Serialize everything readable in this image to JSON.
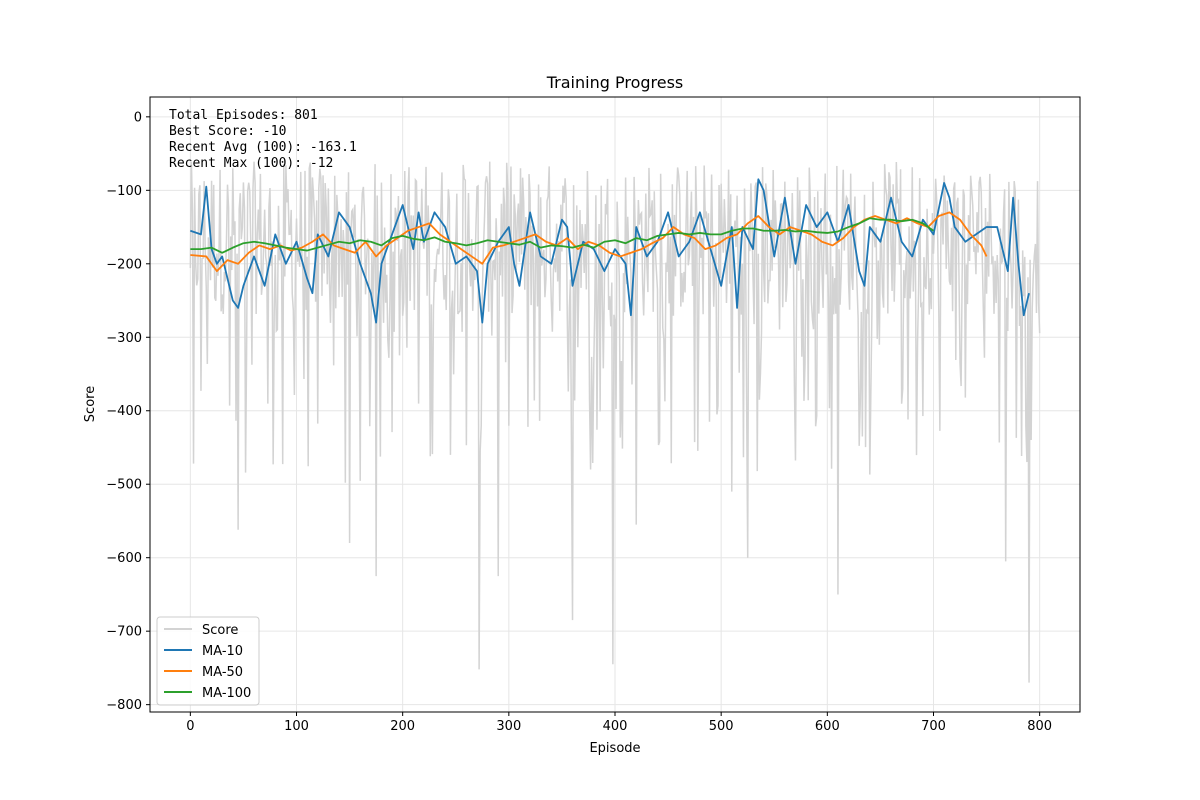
{
  "chart_data": {
    "type": "line",
    "title": "Training Progress",
    "xlabel": "Episode",
    "ylabel": "Score",
    "xlim": [
      -38,
      838
    ],
    "ylim": [
      -810,
      27
    ],
    "x_ticks": [
      0,
      100,
      200,
      300,
      400,
      500,
      600,
      700,
      800
    ],
    "y_ticks": [
      0,
      -100,
      -200,
      -300,
      -400,
      -500,
      -600,
      -700,
      -800
    ],
    "x_tick_labels": [
      "0",
      "100",
      "200",
      "300",
      "400",
      "500",
      "600",
      "700",
      "800"
    ],
    "y_tick_labels": [
      "0",
      "−100",
      "−200",
      "−300",
      "−400",
      "−500",
      "−600",
      "−700",
      "−800"
    ],
    "grid": true,
    "legend_position": "bottom-left",
    "stats_lines": [
      "Total Episodes: 801",
      "Best Score: -10",
      "Recent Avg (100): -163.1",
      "Recent Max (100): -12"
    ],
    "series": [
      {
        "name": "Score",
        "color": "#d3d3d3",
        "x_start": 0,
        "x_step": 1,
        "count": 801,
        "mean": -165,
        "spread": 110,
        "min": -770,
        "max": -10
      },
      {
        "name": "MA-10",
        "color": "#1f77b4",
        "x": [
          0,
          10,
          15,
          20,
          25,
          30,
          40,
          45,
          50,
          60,
          70,
          80,
          90,
          100,
          110,
          115,
          120,
          130,
          140,
          150,
          160,
          170,
          175,
          180,
          190,
          200,
          210,
          215,
          220,
          230,
          240,
          250,
          260,
          270,
          275,
          280,
          290,
          300,
          305,
          310,
          320,
          330,
          340,
          350,
          355,
          360,
          370,
          380,
          390,
          400,
          410,
          415,
          420,
          430,
          440,
          450,
          460,
          470,
          480,
          490,
          500,
          510,
          515,
          520,
          530,
          535,
          540,
          550,
          560,
          570,
          580,
          590,
          600,
          610,
          620,
          630,
          635,
          640,
          650,
          660,
          670,
          680,
          690,
          700,
          710,
          715,
          720,
          730,
          740,
          750,
          760,
          770,
          775,
          780,
          785,
          790
        ],
        "y": [
          -155,
          -160,
          -95,
          -180,
          -200,
          -190,
          -250,
          -260,
          -230,
          -190,
          -230,
          -160,
          -200,
          -170,
          -220,
          -240,
          -160,
          -190,
          -130,
          -150,
          -200,
          -240,
          -280,
          -200,
          -160,
          -120,
          -180,
          -130,
          -170,
          -130,
          -150,
          -200,
          -190,
          -210,
          -280,
          -200,
          -170,
          -150,
          -200,
          -230,
          -130,
          -190,
          -200,
          -140,
          -150,
          -230,
          -170,
          -180,
          -210,
          -180,
          -200,
          -270,
          -150,
          -190,
          -170,
          -130,
          -190,
          -170,
          -130,
          -180,
          -230,
          -150,
          -260,
          -150,
          -180,
          -85,
          -100,
          -190,
          -110,
          -200,
          -120,
          -150,
          -130,
          -170,
          -120,
          -210,
          -230,
          -150,
          -170,
          -110,
          -170,
          -190,
          -140,
          -160,
          -90,
          -110,
          -150,
          -170,
          -160,
          -150,
          -150,
          -210,
          -110,
          -200,
          -270,
          -240
        ]
      },
      {
        "name": "MA-50",
        "color": "#ff7f0e",
        "x": [
          0,
          15,
          25,
          35,
          45,
          55,
          65,
          75,
          85,
          95,
          105,
          115,
          125,
          135,
          145,
          155,
          165,
          175,
          185,
          195,
          205,
          215,
          225,
          235,
          245,
          255,
          265,
          275,
          285,
          295,
          305,
          315,
          325,
          335,
          345,
          355,
          365,
          375,
          385,
          395,
          405,
          415,
          425,
          435,
          445,
          455,
          465,
          475,
          485,
          495,
          505,
          515,
          525,
          535,
          545,
          555,
          565,
          575,
          585,
          595,
          605,
          615,
          625,
          635,
          645,
          655,
          665,
          675,
          685,
          695,
          705,
          715,
          725,
          735,
          745,
          750
        ],
        "y": [
          -188,
          -190,
          -210,
          -195,
          -200,
          -185,
          -175,
          -180,
          -175,
          -182,
          -178,
          -170,
          -160,
          -175,
          -180,
          -185,
          -170,
          -190,
          -175,
          -165,
          -155,
          -150,
          -145,
          -160,
          -170,
          -180,
          -190,
          -200,
          -178,
          -175,
          -170,
          -165,
          -160,
          -170,
          -175,
          -165,
          -180,
          -170,
          -175,
          -185,
          -190,
          -185,
          -180,
          -172,
          -165,
          -150,
          -160,
          -165,
          -180,
          -175,
          -165,
          -160,
          -145,
          -135,
          -150,
          -160,
          -150,
          -155,
          -160,
          -170,
          -175,
          -165,
          -150,
          -140,
          -135,
          -140,
          -145,
          -138,
          -145,
          -150,
          -135,
          -130,
          -140,
          -160,
          -175,
          -190
        ]
      },
      {
        "name": "MA-100",
        "color": "#2ca02c",
        "x": [
          0,
          10,
          20,
          30,
          40,
          50,
          60,
          70,
          80,
          90,
          100,
          110,
          120,
          130,
          140,
          150,
          160,
          170,
          180,
          190,
          200,
          210,
          220,
          230,
          240,
          250,
          260,
          270,
          280,
          290,
          300,
          310,
          320,
          330,
          340,
          350,
          360,
          370,
          380,
          390,
          400,
          410,
          420,
          430,
          440,
          450,
          460,
          470,
          480,
          490,
          500,
          510,
          520,
          530,
          540,
          550,
          560,
          570,
          580,
          590,
          600,
          610,
          620,
          630,
          640,
          650,
          660,
          670,
          680,
          690,
          700
        ],
        "y": [
          -180,
          -180,
          -178,
          -185,
          -178,
          -172,
          -170,
          -172,
          -175,
          -178,
          -180,
          -182,
          -178,
          -174,
          -170,
          -172,
          -168,
          -170,
          -175,
          -165,
          -162,
          -166,
          -168,
          -164,
          -170,
          -172,
          -175,
          -172,
          -168,
          -170,
          -172,
          -174,
          -170,
          -178,
          -175,
          -176,
          -178,
          -174,
          -178,
          -170,
          -168,
          -172,
          -165,
          -168,
          -162,
          -160,
          -158,
          -160,
          -158,
          -160,
          -160,
          -155,
          -152,
          -152,
          -155,
          -155,
          -154,
          -156,
          -155,
          -157,
          -158,
          -156,
          -150,
          -145,
          -138,
          -140,
          -140,
          -142,
          -140,
          -145,
          -155
        ]
      }
    ]
  }
}
